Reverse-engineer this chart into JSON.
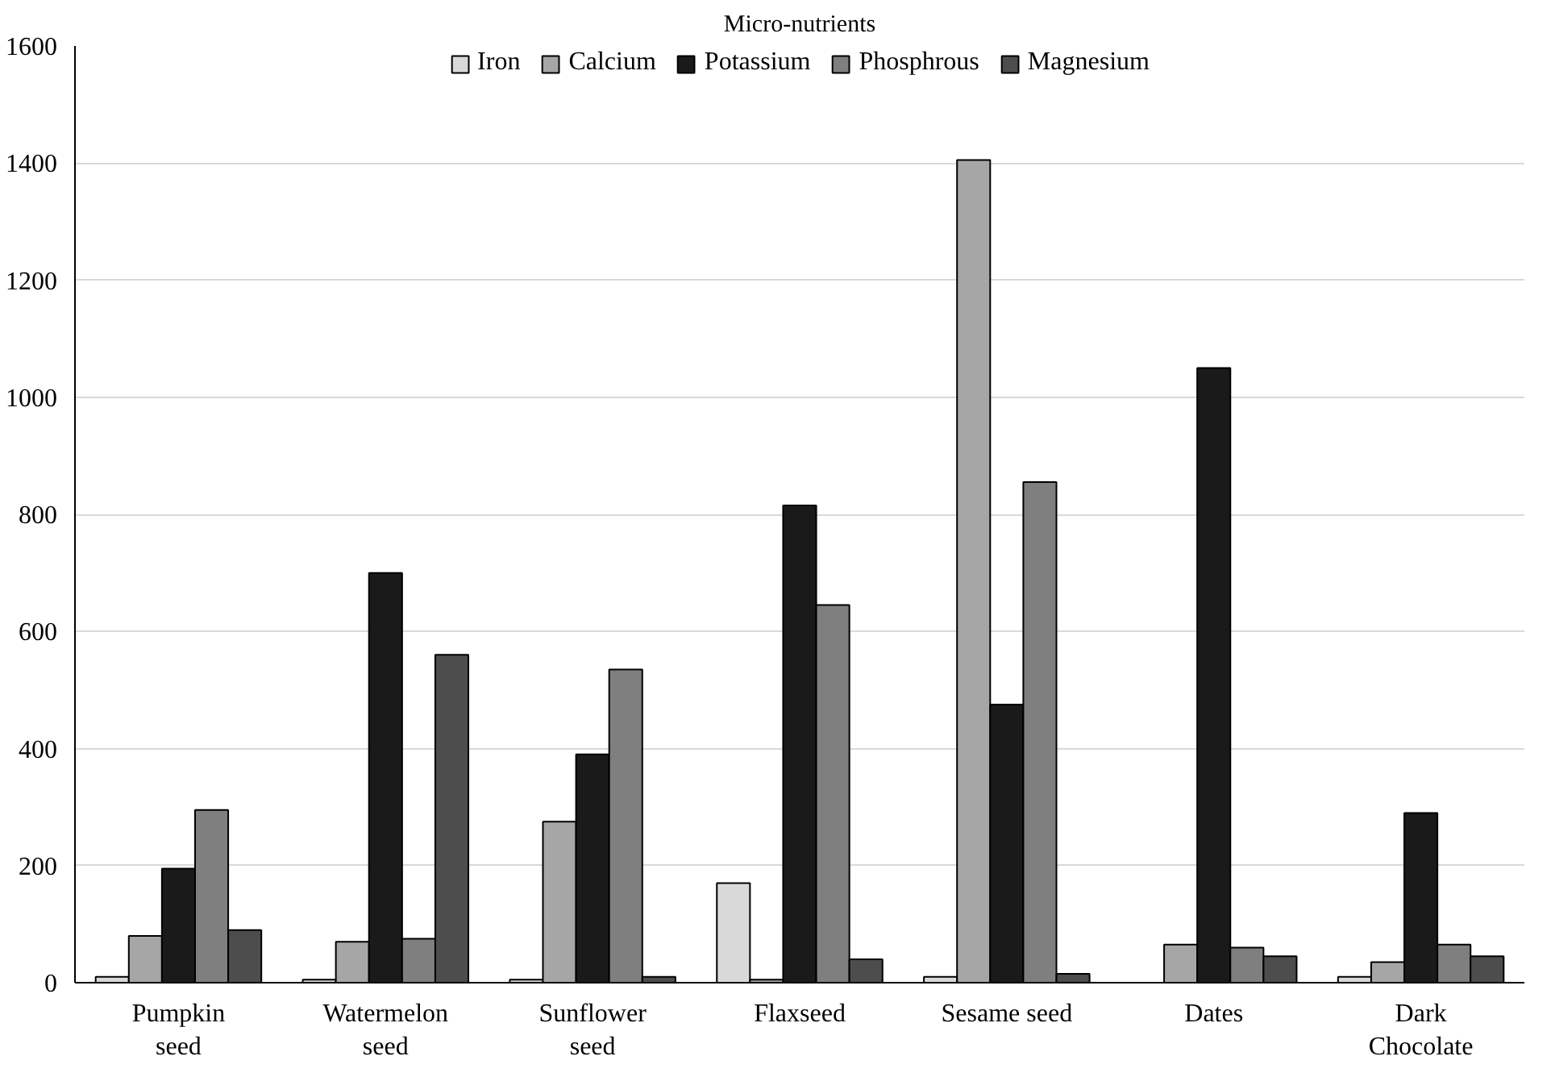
{
  "chart_data": {
    "type": "bar",
    "title": "Micro-nutrients",
    "categories": [
      "Pumpkin\nseed",
      "Watermelon\nseed",
      "Sunflower\nseed",
      "Flaxseed",
      "Sesame seed",
      "Dates",
      "Dark\nChocolate"
    ],
    "series": [
      {
        "name": "Iron",
        "color": "#d9d9d9",
        "values": [
          10,
          5,
          5,
          170,
          10,
          null,
          10
        ]
      },
      {
        "name": "Calcium",
        "color": "#a6a6a6",
        "values": [
          80,
          70,
          275,
          5,
          1405,
          65,
          35
        ]
      },
      {
        "name": "Potassium",
        "color": "#1a1a1a",
        "values": [
          195,
          700,
          390,
          815,
          475,
          1050,
          290
        ]
      },
      {
        "name": "Phosphrous",
        "color": "#7f7f7f",
        "values": [
          295,
          75,
          535,
          645,
          855,
          60,
          65
        ]
      },
      {
        "name": "Magnesium",
        "color": "#4d4d4d",
        "values": [
          90,
          560,
          10,
          40,
          15,
          45,
          45
        ]
      }
    ],
    "ylim": [
      0,
      1600
    ],
    "yticks": [
      0,
      200,
      400,
      600,
      800,
      1000,
      1200,
      1400,
      1600
    ],
    "grid": "y",
    "legend": "top"
  }
}
